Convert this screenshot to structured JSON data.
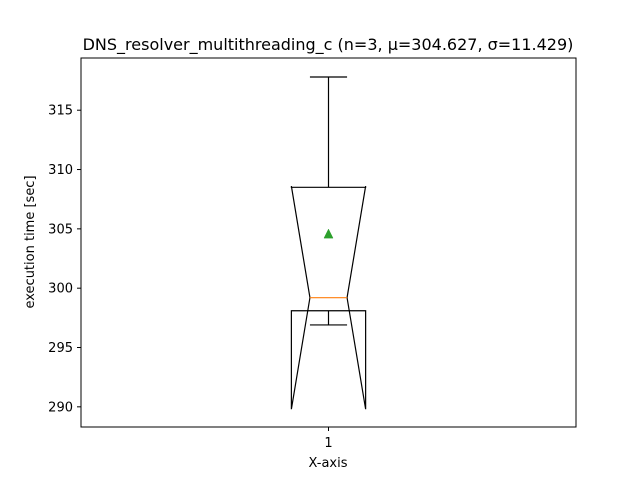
{
  "chart_data": {
    "type": "box",
    "title": "DNS_resolver_multithreading_c (n=3, μ=304.627, σ=11.429)",
    "xlabel": "X-axis",
    "ylabel": "execution time [sec]",
    "categories": [
      "1"
    ],
    "ylim": [
      288.3,
      319.4
    ],
    "yticks": [
      290,
      295,
      300,
      305,
      310,
      315
    ],
    "ytick_labels": [
      "290",
      "295",
      "300",
      "305",
      "310",
      "315"
    ],
    "grid": false,
    "notched": true,
    "boxes": [
      {
        "label": "1",
        "whisker_low": 296.9,
        "q1": 298.1,
        "median": 299.2,
        "q3": 308.5,
        "whisker_high": 317.8,
        "notch_low": 289.8,
        "notch_high": 308.6,
        "mean": 304.6
      }
    ],
    "colors": {
      "box": "#000000",
      "median": "#ff7f0e",
      "mean": "#2ca02c"
    }
  }
}
